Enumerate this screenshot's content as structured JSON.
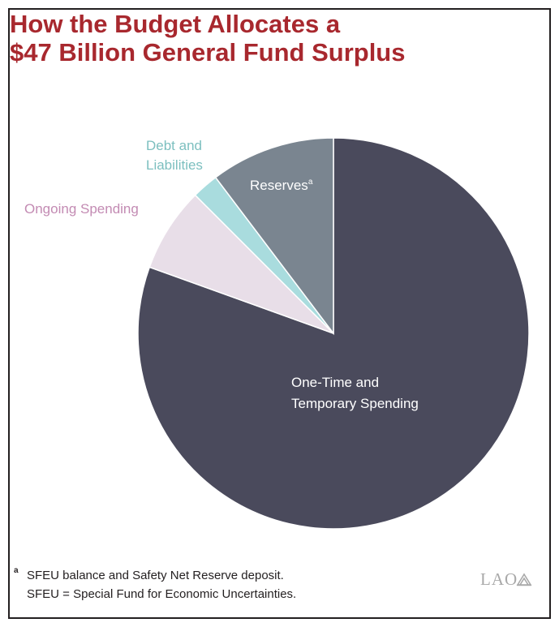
{
  "title_lines": [
    "How the Budget Allocates a",
    "$47 Billion General Fund Surplus"
  ],
  "chart_data": {
    "type": "pie",
    "title": "How the Budget Allocates a $47 Billion General Fund Surplus",
    "start": "12 o'clock, clockwise",
    "slices": [
      {
        "label": "One-Time and Temporary Spending",
        "label_lines": [
          "One-Time and",
          "Temporary Spending"
        ],
        "value": 80.5,
        "color": "#4a4a5c",
        "label_color": "#ffffff"
      },
      {
        "label": "Ongoing Spending",
        "label_lines": [
          "Ongoing Spending"
        ],
        "value": 7.0,
        "color": "#e8dee8",
        "label_color": "#c38bb3"
      },
      {
        "label": "Debt and Liabilities",
        "label_lines": [
          "Debt and",
          "Liabilities"
        ],
        "value": 2.2,
        "color": "#a9dcde",
        "label_color": "#7cbfbf"
      },
      {
        "label": "Reserves",
        "label_lines": [
          "Reserves"
        ],
        "label_superscript": "a",
        "value": 10.3,
        "color": "#7a8590",
        "label_color": "#ffffff"
      }
    ]
  },
  "footnote": {
    "marker": "a",
    "lines": [
      "SFEU balance and Safety Net Reserve deposit.",
      "SFEU = Special Fund for Economic Uncertainties."
    ]
  },
  "logo_text": "LAO"
}
